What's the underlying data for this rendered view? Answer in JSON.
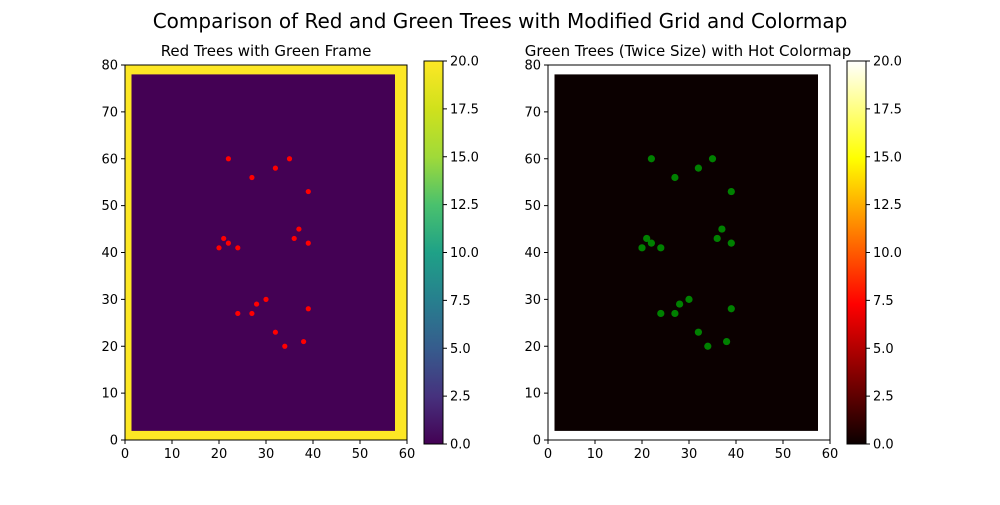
{
  "figure": {
    "title": "Comparison of Red and Green Trees with Modified Grid and Colormap"
  },
  "chart_data": [
    {
      "type": "heatmap",
      "title": "Red Trees with Green Frame",
      "xlim": [
        0,
        60
      ],
      "ylim": [
        0,
        80
      ],
      "xticks": [
        "0",
        "10",
        "20",
        "30",
        "40",
        "50",
        "60"
      ],
      "yticks": [
        "0",
        "10",
        "20",
        "30",
        "40",
        "50",
        "60",
        "70",
        "80"
      ],
      "grid": false,
      "colormap": "viridis",
      "colorbar": {
        "range": [
          0,
          20
        ],
        "ticks": [
          "0.0",
          "2.5",
          "5.0",
          "7.5",
          "10.0",
          "12.5",
          "15.0",
          "17.5",
          "20.0"
        ]
      },
      "frame": {
        "value": 20,
        "color": "#fde725"
      },
      "interior": {
        "value": 0,
        "color": "#440154"
      },
      "marker_color": "#ff0000",
      "points": [
        {
          "x": 22,
          "y": 60
        },
        {
          "x": 35,
          "y": 60
        },
        {
          "x": 32,
          "y": 58
        },
        {
          "x": 27,
          "y": 56
        },
        {
          "x": 39,
          "y": 53
        },
        {
          "x": 37,
          "y": 45
        },
        {
          "x": 21,
          "y": 43
        },
        {
          "x": 36,
          "y": 43
        },
        {
          "x": 22,
          "y": 42
        },
        {
          "x": 39,
          "y": 42
        },
        {
          "x": 20,
          "y": 41
        },
        {
          "x": 24,
          "y": 41
        },
        {
          "x": 30,
          "y": 30
        },
        {
          "x": 28,
          "y": 29
        },
        {
          "x": 39,
          "y": 28
        },
        {
          "x": 24,
          "y": 27
        },
        {
          "x": 27,
          "y": 27
        },
        {
          "x": 32,
          "y": 23
        },
        {
          "x": 38,
          "y": 21
        },
        {
          "x": 34,
          "y": 20
        }
      ]
    },
    {
      "type": "heatmap",
      "title": "Green Trees (Twice Size) with Hot Colormap",
      "xlim": [
        0,
        60
      ],
      "ylim": [
        0,
        80
      ],
      "xticks": [
        "0",
        "10",
        "20",
        "30",
        "40",
        "50",
        "60"
      ],
      "yticks": [
        "0",
        "10",
        "20",
        "30",
        "40",
        "50",
        "60",
        "70",
        "80"
      ],
      "grid": false,
      "colormap": "hot",
      "colorbar": {
        "range": [
          0,
          20
        ],
        "ticks": [
          "0.0",
          "2.5",
          "5.0",
          "7.5",
          "10.0",
          "12.5",
          "15.0",
          "17.5",
          "20.0"
        ]
      },
      "frame": {
        "value": 20,
        "color": "#ffffff"
      },
      "interior": {
        "value": 0,
        "color": "#0b0000"
      },
      "marker_color": "#008000",
      "points": [
        {
          "x": 22,
          "y": 60
        },
        {
          "x": 35,
          "y": 60
        },
        {
          "x": 32,
          "y": 58
        },
        {
          "x": 27,
          "y": 56
        },
        {
          "x": 39,
          "y": 53
        },
        {
          "x": 37,
          "y": 45
        },
        {
          "x": 21,
          "y": 43
        },
        {
          "x": 36,
          "y": 43
        },
        {
          "x": 22,
          "y": 42
        },
        {
          "x": 39,
          "y": 42
        },
        {
          "x": 20,
          "y": 41
        },
        {
          "x": 24,
          "y": 41
        },
        {
          "x": 30,
          "y": 30
        },
        {
          "x": 28,
          "y": 29
        },
        {
          "x": 39,
          "y": 28
        },
        {
          "x": 24,
          "y": 27
        },
        {
          "x": 27,
          "y": 27
        },
        {
          "x": 32,
          "y": 23
        },
        {
          "x": 38,
          "y": 21
        },
        {
          "x": 34,
          "y": 20
        }
      ]
    }
  ]
}
